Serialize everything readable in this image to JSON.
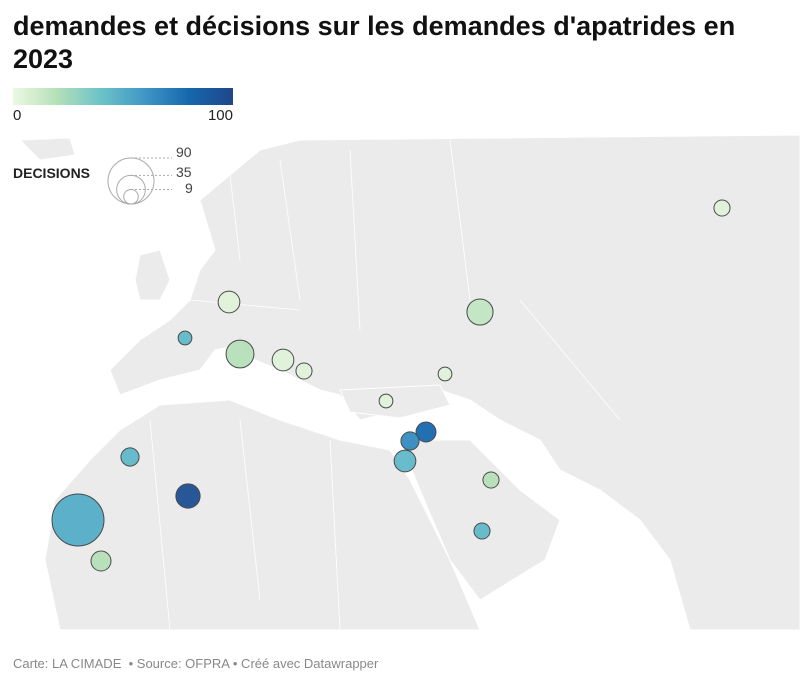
{
  "title": "demandes et décisions sur les demandes d'apatrides en 2023",
  "color_legend": {
    "min": "0",
    "max": "100",
    "colors": [
      "#edf8e2",
      "#b5e0b8",
      "#6cc3c8",
      "#3e96c6",
      "#1668ad",
      "#21468a"
    ]
  },
  "size_legend": {
    "label": "DECISIONS",
    "values": [
      "90",
      "35",
      "9"
    ]
  },
  "colors": {
    "land": "#ebebeb",
    "border": "#ffffff",
    "marker_stroke": "#4a4a4a"
  },
  "markers": [
    {
      "demandes": 50,
      "decisions": 115
    },
    {
      "demandes": 20,
      "decisions": 17
    },
    {
      "demandes": 45,
      "decisions": 14
    },
    {
      "demandes": 95,
      "decisions": 25
    },
    {
      "demandes": 45,
      "decisions": 8
    },
    {
      "demandes": 5,
      "decisions": 20
    },
    {
      "demandes": 20,
      "decisions": 33
    },
    {
      "demandes": 5,
      "decisions": 20
    },
    {
      "demandes": 5,
      "decisions": 11
    },
    {
      "demandes": 5,
      "decisions": 8
    },
    {
      "demandes": 5,
      "decisions": 8
    },
    {
      "demandes": 15,
      "decisions": 29
    },
    {
      "demandes": 5,
      "decisions": 11
    },
    {
      "demandes": 80,
      "decisions": 17
    },
    {
      "demandes": 65,
      "decisions": 14
    },
    {
      "demandes": 45,
      "decisions": 20
    },
    {
      "demandes": 20,
      "decisions": 11
    },
    {
      "demandes": 45,
      "decisions": 11
    }
  ],
  "footer": {
    "credit": "Carte: LA CIMADE",
    "source": "• Source: OFPRA",
    "tool": "• Créé avec Datawrapper"
  }
}
